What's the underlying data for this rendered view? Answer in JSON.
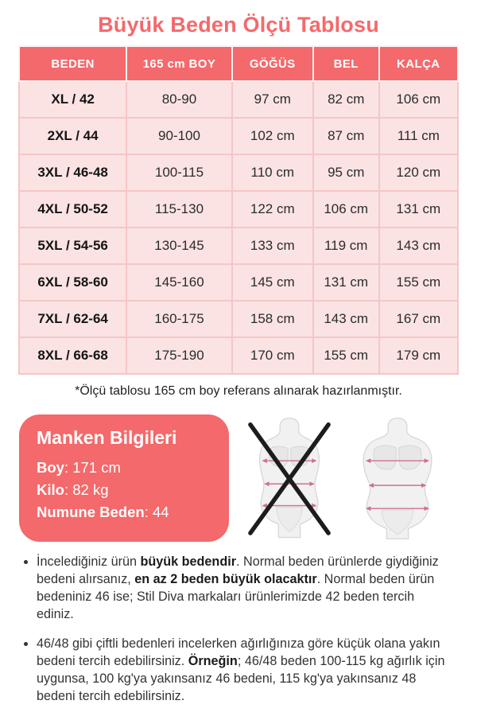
{
  "page": {
    "title": "Büyük Beden Ölçü Tablosu",
    "footnote": "*Ölçü tablosu 165 cm boy referans alınarak hazırlanmıştır."
  },
  "size_table": {
    "headers": [
      "BEDEN",
      "165 cm BOY",
      "GÖĞÜS",
      "BEL",
      "KALÇA"
    ],
    "rows": [
      [
        "XL / 42",
        "80-90",
        "97 cm",
        "82 cm",
        "106 cm"
      ],
      [
        "2XL / 44",
        "90-100",
        "102 cm",
        "87 cm",
        "111 cm"
      ],
      [
        "3XL / 46-48",
        "100-115",
        "110 cm",
        "95 cm",
        "120 cm"
      ],
      [
        "4XL / 50-52",
        "115-130",
        "122 cm",
        "106 cm",
        "131 cm"
      ],
      [
        "5XL / 54-56",
        "130-145",
        "133 cm",
        "119 cm",
        "143 cm"
      ],
      [
        "6XL / 58-60",
        "145-160",
        "145 cm",
        "131 cm",
        "155 cm"
      ],
      [
        "7XL / 62-64",
        "160-175",
        "158 cm",
        "143 cm",
        "167 cm"
      ],
      [
        "8XL / 66-68",
        "175-190",
        "170 cm",
        "155 cm",
        "179 cm"
      ]
    ]
  },
  "model_info": {
    "title": "Manken Bilgileri",
    "lines": [
      {
        "label": "Boy",
        "value": "171 cm"
      },
      {
        "label": "Kilo",
        "value": "82 kg"
      },
      {
        "label": "Numune Beden",
        "value": "44"
      }
    ]
  },
  "figures": {
    "left": "slim-figure-crossed-out-icon",
    "right": "plus-size-figure-icon"
  },
  "notes": [
    {
      "segments": [
        {
          "t": "İncelediğiniz ürün ",
          "b": false
        },
        {
          "t": "büyük bedendir",
          "b": true
        },
        {
          "t": ". Normal beden ürünlerde giydiğiniz bedeni alırsanız, ",
          "b": false
        },
        {
          "t": "en az 2 beden büyük olacaktır",
          "b": true
        },
        {
          "t": ". Normal beden ürün bedeniniz 46 ise; Stil Diva markaları ürünlerimizde 42 beden tercih ediniz.",
          "b": false
        }
      ]
    },
    {
      "segments": [
        {
          "t": "46/48 gibi çiftli bedenleri incelerken ağırlığınıza göre küçük olana yakın bedeni tercih edebilirsiniz. ",
          "b": false
        },
        {
          "t": "Örneğin",
          "b": true
        },
        {
          "t": "; 46/48 beden 100-115 kg ağırlık için uygunsa, 100 kg'ya yakınsanız 46 bedeni, 115 kg'ya yakınsanız 48 bedeni tercih edebilirsiniz.",
          "b": false
        }
      ]
    }
  ],
  "colors": {
    "accent": "#f4696b",
    "row_bg": "#fbe3e3",
    "grid": "#f5c6c6",
    "measure": "#cf6f95",
    "cross": "#1c1c1c"
  }
}
